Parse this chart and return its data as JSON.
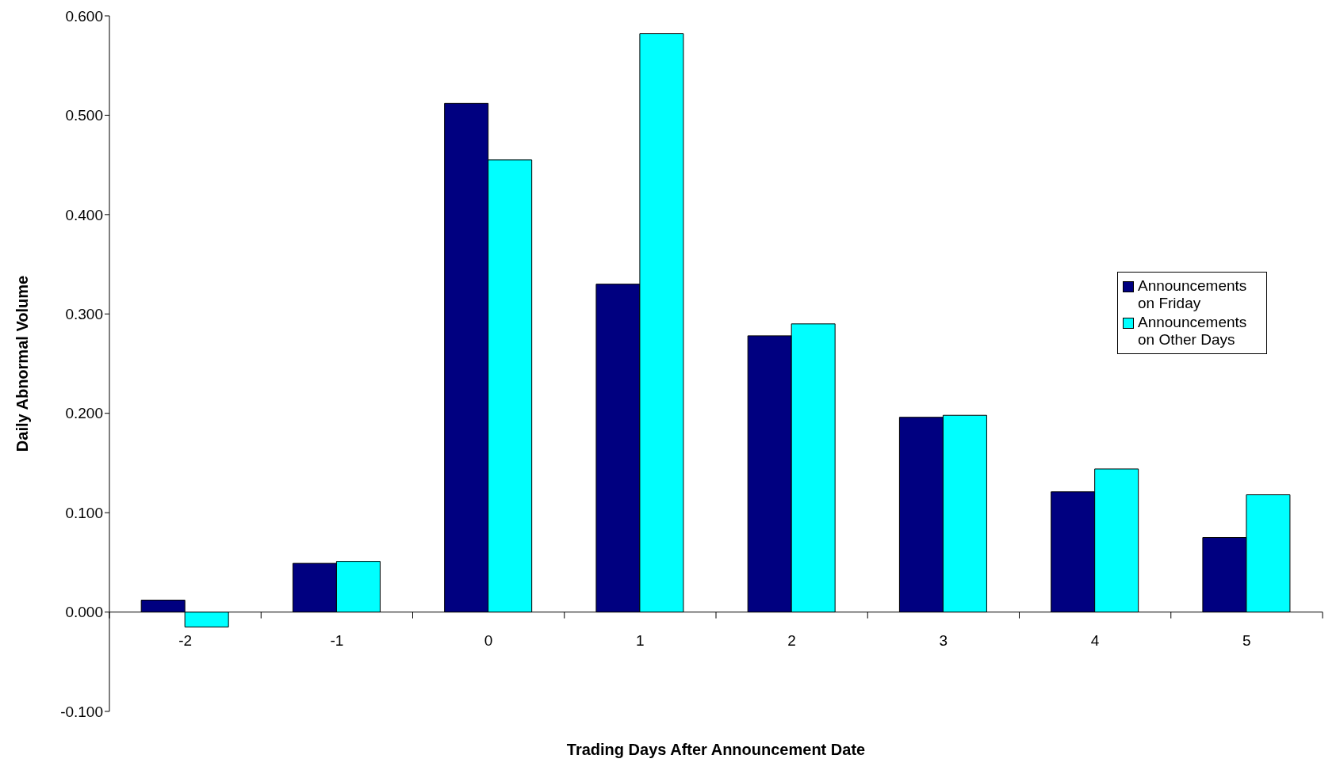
{
  "chart_data": {
    "type": "bar",
    "xlabel": "Trading Days After Announcement Date",
    "ylabel": "Daily Abnormal Volume",
    "categories": [
      "-2",
      "-1",
      "0",
      "1",
      "2",
      "3",
      "4",
      "5"
    ],
    "series": [
      {
        "name": "Announcements on Friday",
        "color": "#000080",
        "values": [
          0.012,
          0.049,
          0.512,
          0.33,
          0.278,
          0.196,
          0.121,
          0.075
        ]
      },
      {
        "name": "Announcements on Other Days",
        "color": "#00ffff",
        "values": [
          -0.015,
          0.051,
          0.455,
          0.582,
          0.29,
          0.198,
          0.144,
          0.118
        ]
      }
    ],
    "ylim": [
      -0.1,
      0.6
    ],
    "yticks": [
      {
        "value": -0.1,
        "label": "-0.100"
      },
      {
        "value": 0,
        "label": "0.000"
      },
      {
        "value": 0.1,
        "label": "0.100"
      },
      {
        "value": 0.2,
        "label": "0.200"
      },
      {
        "value": 0.3,
        "label": "0.300"
      },
      {
        "value": 0.4,
        "label": "0.400"
      },
      {
        "value": 0.5,
        "label": "0.500"
      },
      {
        "value": 0.6,
        "label": "0.600"
      }
    ],
    "grid": false,
    "legend": "right"
  }
}
